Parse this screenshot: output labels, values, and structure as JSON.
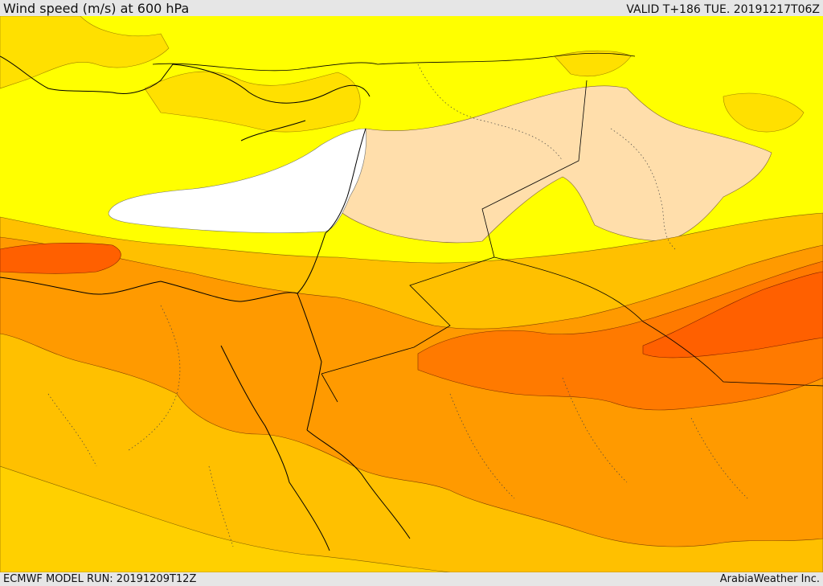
{
  "header": {
    "title": "Wind speed (m/s) at 600 hPa",
    "valid": "VALID T+186 TUE. 20191217T06Z"
  },
  "footer": {
    "model_run": "ECMWF MODEL RUN: 20191209T12Z",
    "credit": "ArabiaWeather Inc."
  },
  "colors": {
    "calm": "#ffffff",
    "band_1": "#ffff00",
    "band_2": "#ffe000",
    "band_3": "#ffdeab",
    "band_4": "#ffc000",
    "band_5": "#ff9a00",
    "band_6": "#ff7a00",
    "band_7": "#ff6000",
    "coastline": "#000000"
  }
}
